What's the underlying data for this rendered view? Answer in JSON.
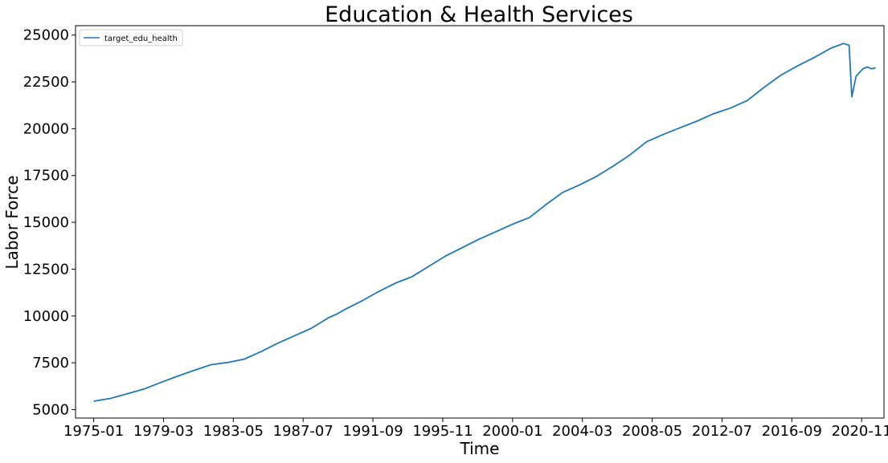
{
  "chart_data": {
    "type": "line",
    "title": "Education & Health Services",
    "xlabel": "Time",
    "ylabel": "Labor Force",
    "x_ticks": [
      "1975-01",
      "1979-03",
      "1983-05",
      "1987-07",
      "1991-09",
      "1995-11",
      "2000-01",
      "2004-03",
      "2008-05",
      "2012-07",
      "2016-09",
      "2020-11"
    ],
    "y_ticks": [
      5000,
      7500,
      10000,
      12500,
      15000,
      17500,
      20000,
      22500,
      25000
    ],
    "ylim": [
      4550,
      25500
    ],
    "xlim": [
      "1973-12",
      "2022-03"
    ],
    "legend": "top-left",
    "grid": false,
    "color": "#1f77b4",
    "series": [
      {
        "name": "target_edu_health",
        "x": [
          "1975-01",
          "1976-01",
          "1977-01",
          "1978-01",
          "1979-01",
          "1980-01",
          "1981-01",
          "1982-01",
          "1983-01",
          "1984-01",
          "1985-01",
          "1986-01",
          "1987-01",
          "1988-01",
          "1989-01",
          "1989-07",
          "1990-01",
          "1991-01",
          "1992-01",
          "1993-01",
          "1994-01",
          "1995-01",
          "1996-01",
          "1997-01",
          "1998-01",
          "1999-01",
          "2000-01",
          "2001-01",
          "2002-01",
          "2003-01",
          "2004-01",
          "2005-01",
          "2006-01",
          "2007-01",
          "2008-01",
          "2009-01",
          "2010-01",
          "2011-01",
          "2012-01",
          "2013-01",
          "2014-01",
          "2015-01",
          "2016-01",
          "2017-01",
          "2018-01",
          "2019-01",
          "2019-10",
          "2020-02",
          "2020-04",
          "2020-07",
          "2020-12",
          "2021-03",
          "2021-06",
          "2021-09"
        ],
        "y": [
          5450,
          5600,
          5850,
          6100,
          6450,
          6780,
          7100,
          7400,
          7520,
          7700,
          8100,
          8550,
          8950,
          9350,
          9900,
          10100,
          10350,
          10800,
          11300,
          11750,
          12100,
          12650,
          13200,
          13650,
          14100,
          14500,
          14900,
          15250,
          15950,
          16600,
          17000,
          17450,
          18000,
          18600,
          19300,
          19700,
          20050,
          20400,
          20800,
          21100,
          21500,
          22200,
          22850,
          23350,
          23800,
          24300,
          24550,
          24450,
          21700,
          22800,
          23200,
          23300,
          23200,
          23250
        ]
      }
    ]
  }
}
